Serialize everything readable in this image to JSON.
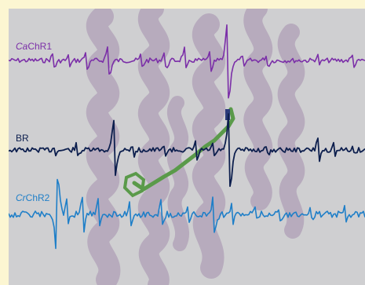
{
  "labels": {
    "cachr1_prefix": "Ca",
    "cachr1_suffix": "ChR1",
    "br": "BR",
    "crchr2_prefix": "Cr",
    "crchr2_suffix": "ChR2"
  },
  "colors": {
    "background": "#fcf6d2",
    "panel": "#cfcfd1",
    "cachr1": "#7b2fa8",
    "br": "#0d1f4e",
    "crchr2": "#1f7fc8",
    "helix": "#a58fae",
    "chromophore": "#5a9a4a"
  }
}
